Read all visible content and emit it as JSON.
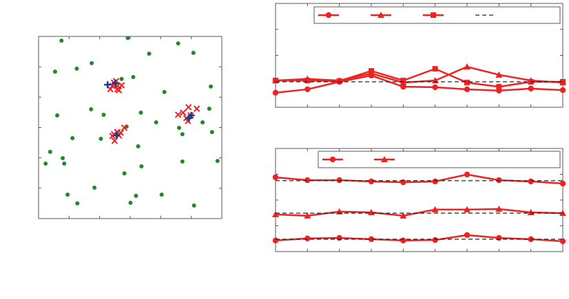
{
  "chart_data": [
    {
      "type": "scatter",
      "xlim": [
        0,
        6
      ],
      "xticks": [
        0,
        1,
        2,
        3,
        4,
        5,
        6
      ],
      "ylim": [
        0,
        6
      ],
      "yticks": [
        0,
        1,
        2,
        3,
        4,
        5,
        6
      ],
      "series": [
        {
          "color": "#22882a",
          "marker": "dot",
          "x": [
            0.75,
            2.92,
            4.57,
            3.62,
            5.07,
            0.54,
            1.25,
            1.74,
            3.1,
            2.72,
            5.64,
            4.12,
            1.72,
            2.13,
            3.35,
            0.61,
            5.59,
            3.85,
            5.37,
            4.6,
            4.71,
            5.68,
            1.11,
            2.04,
            2.88,
            3.26,
            0.38,
            0.79,
            0.84,
            0.23,
            3.37,
            4.71,
            5.86,
            2.81,
            1.83,
            0.95,
            1.27,
            3.19,
            3.01,
            4.03,
            5.09
          ],
          "y": [
            5.86,
            5.95,
            5.77,
            5.43,
            5.46,
            4.84,
            4.94,
            5.12,
            4.66,
            4.6,
            4.35,
            4.17,
            3.6,
            3.42,
            3.49,
            3.4,
            3.62,
            3.17,
            3.17,
            2.99,
            2.78,
            2.85,
            2.65,
            2.63,
            3.03,
            2.38,
            2.2,
            1.99,
            1.81,
            1.81,
            1.72,
            1.88,
            1.9,
            1.49,
            1.02,
            0.79,
            0.5,
            0.75,
            0.52,
            0.79,
            0.43
          ]
        },
        {
          "color": "#ee2222",
          "marker": "x",
          "x": [
            2.35,
            2.47,
            2.58,
            2.63,
            2.54,
            2.72,
            2.42,
            2.58,
            2.47,
            2.58,
            2.69,
            2.49,
            2.81,
            2.42,
            2.63,
            4.57,
            4.73,
            4.91,
            5.18,
            4.84,
            4.89,
            4.98
          ],
          "y": [
            4.26,
            4.48,
            4.37,
            4.23,
            4.53,
            4.39,
            4.37,
            4.26,
            2.78,
            2.85,
            2.83,
            2.56,
            2.99,
            2.72,
            2.74,
            3.42,
            3.49,
            3.67,
            3.62,
            3.31,
            3.21,
            3.4
          ]
        },
        {
          "color": "#1a3a8a",
          "marker": "plus",
          "x": [
            2.26,
            2.51,
            2.56,
            5.0,
            4.93
          ],
          "y": [
            4.41,
            4.46,
            2.74,
            3.4,
            3.31
          ]
        }
      ]
    },
    {
      "type": "line",
      "x": [
        0,
        1,
        2,
        3,
        4,
        5,
        6,
        7,
        8,
        9
      ],
      "xlim": [
        0,
        9
      ],
      "xticks": [
        0,
        1,
        2,
        3,
        4,
        5,
        6,
        7,
        8,
        9
      ],
      "ylim": [
        0,
        4
      ],
      "yticks": [
        0,
        1,
        2,
        3,
        4
      ],
      "legend": true,
      "series": [
        {
          "color": "#ee2222",
          "marker": "circle",
          "dash": false,
          "in_legend": true,
          "values": [
            0.56,
            0.69,
            0.98,
            1.22,
            0.79,
            0.77,
            0.69,
            0.64,
            0.72,
            0.66
          ]
        },
        {
          "color": "#ee2222",
          "marker": "triangle",
          "dash": false,
          "in_legend": true,
          "values": [
            1.03,
            1.09,
            1.03,
            1.3,
            0.95,
            1.03,
            1.56,
            1.25,
            1.03,
            0.95
          ]
        },
        {
          "color": "#ee2222",
          "marker": "square",
          "dash": false,
          "in_legend": true,
          "values": [
            1.03,
            1.03,
            1.01,
            1.4,
            1.03,
            1.48,
            0.95,
            0.79,
            0.98,
            0.98
          ]
        },
        {
          "color": "#222222",
          "marker": "none",
          "dash": true,
          "in_legend": true,
          "values": [
            0.98,
            0.98,
            0.98,
            0.98,
            0.98,
            0.98,
            0.98,
            0.98,
            0.98,
            0.98
          ]
        }
      ]
    },
    {
      "type": "line",
      "x": [
        0,
        1,
        2,
        3,
        4,
        5,
        6,
        7,
        8,
        9
      ],
      "xlim": [
        0,
        9
      ],
      "xticks": [
        0,
        1,
        2,
        3,
        4,
        5,
        6,
        7,
        8,
        9
      ],
      "ylim": [
        0,
        4
      ],
      "yticks": [
        0,
        1,
        2,
        3,
        4
      ],
      "legend": true,
      "series": [
        {
          "color": "#ee2222",
          "marker": "circle",
          "dash": false,
          "in_legend": true,
          "values": [
            2.88,
            2.77,
            2.77,
            2.72,
            2.69,
            2.72,
            2.99,
            2.77,
            2.72,
            2.64
          ]
        },
        {
          "color": "#ee2222",
          "marker": "triangle",
          "dash": false,
          "in_legend": true,
          "values": [
            1.44,
            1.39,
            1.55,
            1.52,
            1.39,
            1.63,
            1.63,
            1.65,
            1.52,
            1.49
          ]
        },
        {
          "color": "#ee2222",
          "marker": "circle",
          "dash": false,
          "in_legend": false,
          "values": [
            0.43,
            0.51,
            0.53,
            0.48,
            0.43,
            0.45,
            0.64,
            0.53,
            0.48,
            0.4
          ]
        },
        {
          "color": "#222222",
          "marker": "none",
          "dash": true,
          "in_legend": false,
          "values": [
            2.75,
            2.75,
            2.75,
            2.75,
            2.75,
            2.75,
            2.75,
            2.75,
            2.75,
            2.75
          ]
        },
        {
          "color": "#222222",
          "marker": "none",
          "dash": true,
          "in_legend": false,
          "values": [
            1.49,
            1.49,
            1.49,
            1.49,
            1.49,
            1.49,
            1.49,
            1.49,
            1.49,
            1.49
          ]
        },
        {
          "color": "#222222",
          "marker": "none",
          "dash": true,
          "in_legend": false,
          "values": [
            0.48,
            0.48,
            0.48,
            0.48,
            0.48,
            0.48,
            0.48,
            0.48,
            0.48,
            0.48
          ]
        }
      ]
    }
  ]
}
